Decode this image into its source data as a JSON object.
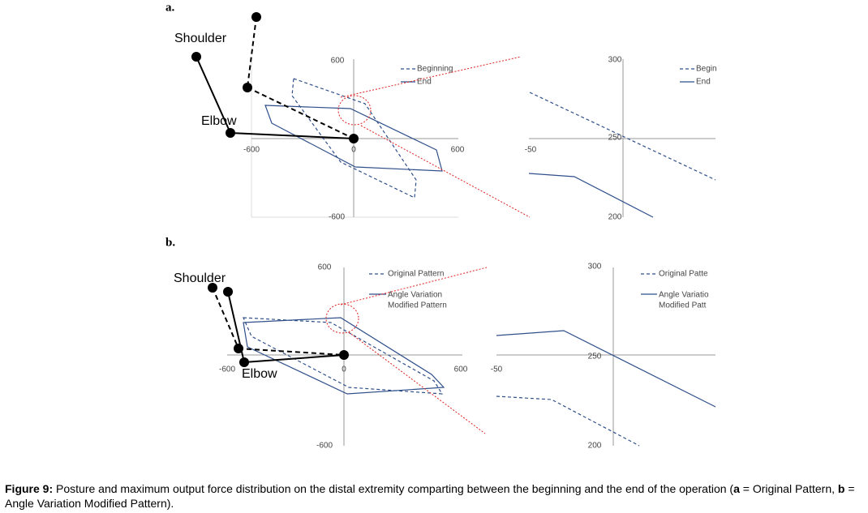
{
  "panels": [
    {
      "label": "a.",
      "arm_labels": {
        "shoulder": "Shoulder",
        "elbow": "Elbow"
      },
      "main_plot": {
        "ticks": {
          "top": 600,
          "left": -600,
          "origin": 0,
          "right": 600,
          "bottom": -600
        },
        "legend": [
          "Beginning",
          "End"
        ]
      },
      "zoom_plot": {
        "ticks": {
          "top": 300,
          "left": -50,
          "middle": 250,
          "bottom": 200
        },
        "legend": [
          "Begin",
          "End"
        ]
      }
    },
    {
      "label": "b.",
      "arm_labels": {
        "shoulder": "Shoulder",
        "elbow": "Elbow"
      },
      "main_plot": {
        "ticks": {
          "top": 600,
          "left": -600,
          "origin": 0,
          "right": 600,
          "bottom": -600
        },
        "legend": [
          "Original Pattern",
          "Angle Variation",
          "Modified Pattern"
        ]
      },
      "zoom_plot": {
        "ticks": {
          "top": 300,
          "left": -50,
          "middle": 250,
          "bottom": 200
        },
        "legend": [
          "Original Patte",
          "Angle Variatio",
          "Modified Patt"
        ]
      }
    }
  ],
  "caption": {
    "label": "Figure 9:",
    "text_1": " Posture and maximum output force distribution on the distal extremity comparting between the beginning and the end of the operation (",
    "key_a": "a",
    "text_2": " = Original Pattern, ",
    "key_b": "b",
    "text_3": " = Angle Variation Modified Pattern)."
  }
}
